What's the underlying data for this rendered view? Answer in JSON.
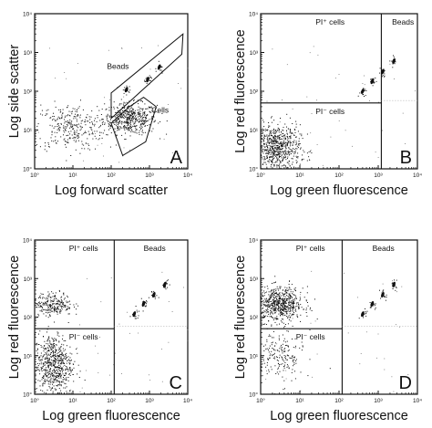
{
  "figure": {
    "panels": [
      "A",
      "B",
      "C",
      "D"
    ]
  },
  "chart_data": [
    {
      "panel": "A",
      "type": "scatter",
      "xlabel": "Log forward scatter",
      "ylabel": "Log side scatter",
      "log_x": true,
      "log_y": true,
      "xlim": [
        1,
        10000
      ],
      "ylim": [
        1,
        10000
      ],
      "x_ticks": [
        "10°",
        "10¹",
        "10²",
        "10³",
        "10⁴"
      ],
      "y_ticks": [
        "10°",
        "10¹",
        "10²",
        "10³",
        "10⁴"
      ],
      "gates": [
        {
          "label": "Beads",
          "shape": "polygon",
          "vertices": [
            [
              100,
              20
            ],
            [
              7000,
              900
            ],
            [
              7500,
              3000
            ],
            [
              100,
              90
            ]
          ]
        },
        {
          "label": "Cells",
          "shape": "polygon",
          "vertices": [
            [
              100,
              15
            ],
            [
              200,
              2.2
            ],
            [
              800,
              5
            ],
            [
              1500,
              40
            ],
            [
              700,
              70
            ],
            [
              300,
              40
            ]
          ]
        }
      ],
      "populations": [
        {
          "name": "Cells",
          "center": [
            300,
            20
          ],
          "spread_decades": [
            0.35,
            0.2
          ],
          "count": 500
        },
        {
          "name": "debris",
          "center": [
            8,
            12
          ],
          "spread_decades": [
            0.45,
            0.3
          ],
          "count": 300
        },
        {
          "name": "Beads",
          "points": [
            [
              250,
              110
            ],
            [
              900,
              200
            ],
            [
              1800,
              420
            ]
          ]
        }
      ],
      "grid": false,
      "legend": "none"
    },
    {
      "panel": "B",
      "type": "scatter",
      "xlabel": "Log green fluorescence",
      "ylabel": "Log red fluorescence",
      "log_x": true,
      "log_y": true,
      "xlim": [
        1,
        10000
      ],
      "ylim": [
        1,
        10000
      ],
      "x_ticks": [
        "10°",
        "10¹",
        "10²",
        "10³",
        "10⁴"
      ],
      "y_ticks": [
        "10°",
        "10¹",
        "10²",
        "10³",
        "10⁴"
      ],
      "quadrant_dividers": {
        "x": 1200,
        "y": 50
      },
      "quadrant_labels": {
        "upper_left": "PI⁺ cells",
        "lower_left": "PI⁻ cells",
        "upper_right": "Beads"
      },
      "populations": [
        {
          "name": "PI⁻ cells",
          "center": [
            2.5,
            3.5
          ],
          "spread_decades": [
            0.3,
            0.3
          ],
          "count": 700
        },
        {
          "name": "Beads",
          "points": [
            [
              400,
              100
            ],
            [
              700,
              180
            ],
            [
              1300,
              320
            ],
            [
              2500,
              600
            ]
          ]
        }
      ]
    },
    {
      "panel": "C",
      "type": "scatter",
      "xlabel": "Log green fluorescence",
      "ylabel": "Log red fluorescence",
      "log_x": true,
      "log_y": true,
      "xlim": [
        1,
        10000
      ],
      "ylim": [
        1,
        10000
      ],
      "x_ticks": [
        "10°",
        "10¹",
        "10²",
        "10³",
        "10⁴"
      ],
      "y_ticks": [
        "10°",
        "10¹",
        "10²",
        "10³",
        "10⁴"
      ],
      "quadrant_dividers": {
        "x": 120,
        "y": 50
      },
      "quadrant_labels": {
        "upper_left": "PI⁺ cells",
        "lower_left": "PI⁻ cells",
        "upper_right": "Beads"
      },
      "populations": [
        {
          "name": "PI⁻ cells",
          "center": [
            3,
            6
          ],
          "spread_decades": [
            0.25,
            0.4
          ],
          "count": 650
        },
        {
          "name": "PI⁺ cells",
          "center": [
            3,
            220
          ],
          "spread_decades": [
            0.25,
            0.15
          ],
          "count": 250
        },
        {
          "name": "Beads",
          "points": [
            [
              400,
              120
            ],
            [
              700,
              220
            ],
            [
              1300,
              380
            ],
            [
              2500,
              700
            ]
          ]
        }
      ]
    },
    {
      "panel": "D",
      "type": "scatter",
      "xlabel": "Log green fluorescence",
      "ylabel": "Log red fluorescence",
      "log_x": true,
      "log_y": true,
      "xlim": [
        1,
        10000
      ],
      "ylim": [
        1,
        10000
      ],
      "x_ticks": [
        "10°",
        "10¹",
        "10²",
        "10³",
        "10⁴"
      ],
      "y_ticks": [
        "10°",
        "10¹",
        "10²",
        "10³",
        "10⁴"
      ],
      "quadrant_dividers": {
        "x": 120,
        "y": 50
      },
      "quadrant_labels": {
        "upper_left": "PI⁺ cells",
        "lower_left": "PI⁻ cells",
        "upper_right": "Beads"
      },
      "populations": [
        {
          "name": "PI⁺ cells",
          "center": [
            3,
            220
          ],
          "spread_decades": [
            0.3,
            0.22
          ],
          "count": 650
        },
        {
          "name": "PI⁻ cells",
          "center": [
            3,
            10
          ],
          "spread_decades": [
            0.3,
            0.35
          ],
          "count": 200
        },
        {
          "name": "Beads",
          "points": [
            [
              400,
              120
            ],
            [
              700,
              220
            ],
            [
              1300,
              380
            ],
            [
              2500,
              700
            ]
          ]
        }
      ]
    }
  ]
}
